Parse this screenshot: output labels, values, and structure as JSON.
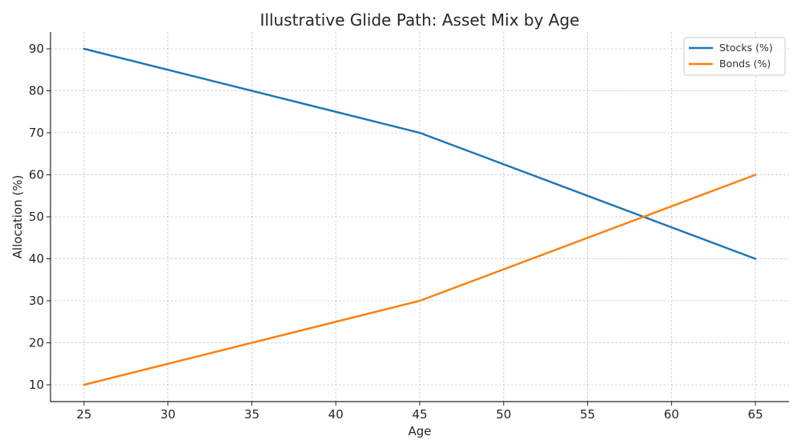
{
  "chart_data": {
    "type": "line",
    "title": "Illustrative Glide Path: Asset Mix by Age",
    "xlabel": "Age",
    "ylabel": "Allocation (%)",
    "x": [
      25,
      45,
      65
    ],
    "xlim": [
      23,
      67
    ],
    "ylim": [
      6,
      94
    ],
    "xticks": [
      25,
      30,
      35,
      40,
      45,
      50,
      55,
      60,
      65
    ],
    "yticks": [
      10,
      20,
      30,
      40,
      50,
      60,
      70,
      80,
      90
    ],
    "grid": true,
    "legend_position": "top-right",
    "series": [
      {
        "name": "Stocks (%)",
        "color": "#1f77b4",
        "values": [
          90,
          70,
          40
        ]
      },
      {
        "name": "Bonds (%)",
        "color": "#ff7f0e",
        "values": [
          10,
          30,
          60
        ]
      }
    ]
  }
}
